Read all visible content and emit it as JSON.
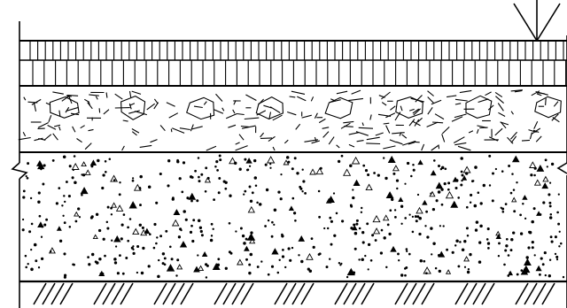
{
  "drawing": {
    "colors": {
      "background": "#ffffff",
      "ink": "#000000"
    },
    "layers": [
      {
        "id": "top-course",
        "pattern": "vertical-hatch",
        "tiers": 2
      },
      {
        "id": "crushed-stone-base",
        "pattern": "stone-aggregate"
      },
      {
        "id": "concrete-sub-base",
        "pattern": "concrete-stipple"
      },
      {
        "id": "earth",
        "pattern": "earth-hatch"
      }
    ],
    "symbols": [
      "load-arrow",
      "break-line-left",
      "break-line-right"
    ]
  }
}
